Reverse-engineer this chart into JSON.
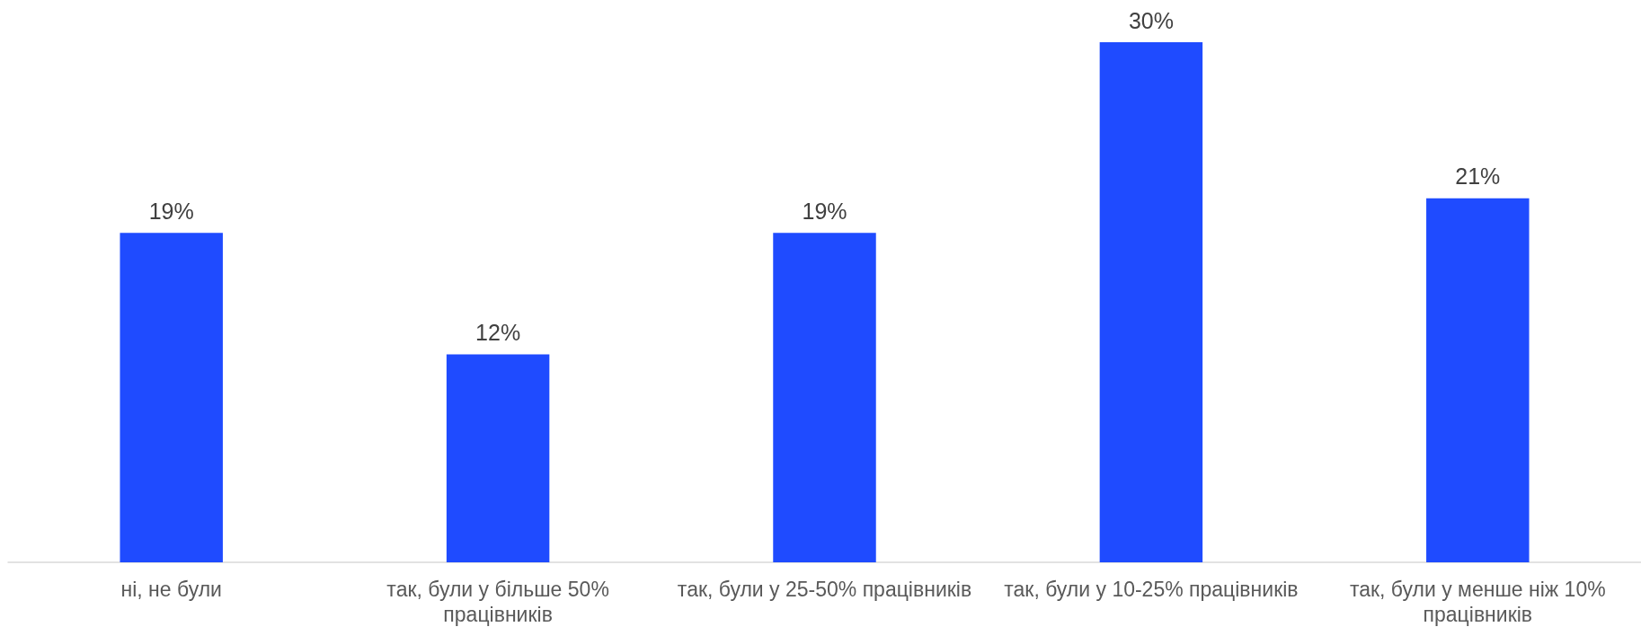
{
  "chart_data": {
    "type": "bar",
    "categories": [
      "ні, не були",
      "так, були у більше 50% працівників",
      "так, були у 25-50% працівників",
      "так, були у 10-25% працівників",
      "так, були у менше ніж 10% працівників"
    ],
    "values": [
      19,
      12,
      19,
      30,
      21
    ],
    "value_labels": [
      "19%",
      "12%",
      "19%",
      "30%",
      "21%"
    ],
    "color": "#1f4bff",
    "grid": false,
    "tick_labels": "x"
  }
}
